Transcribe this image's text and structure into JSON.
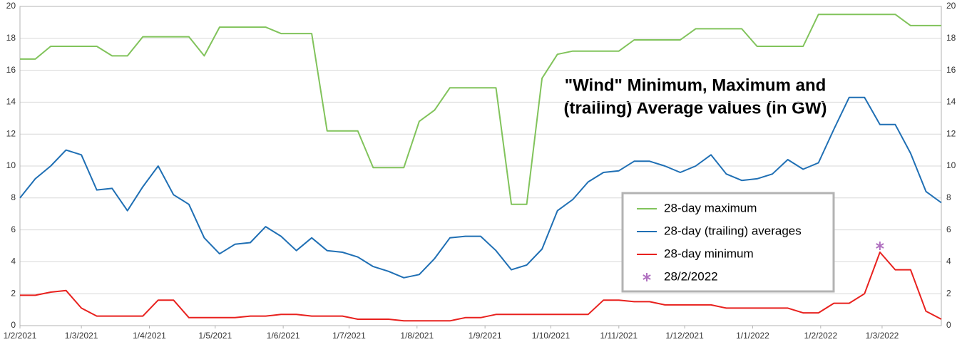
{
  "chart_data": {
    "type": "line",
    "title": [
      "\"Wind\" Minimum, Maximum and",
      "(trailing) Average values (in GW)"
    ],
    "x": [
      "1/2/2021",
      "8/2/2021",
      "15/2/2021",
      "22/2/2021",
      "1/3/2021",
      "8/3/2021",
      "15/3/2021",
      "22/3/2021",
      "29/3/2021",
      "5/4/2021",
      "12/4/2021",
      "19/4/2021",
      "26/4/2021",
      "3/5/2021",
      "10/5/2021",
      "17/5/2021",
      "24/5/2021",
      "31/5/2021",
      "7/6/2021",
      "14/6/2021",
      "21/6/2021",
      "28/6/2021",
      "5/7/2021",
      "12/7/2021",
      "19/7/2021",
      "26/7/2021",
      "2/8/2021",
      "9/8/2021",
      "16/8/2021",
      "23/8/2021",
      "30/8/2021",
      "6/9/2021",
      "13/9/2021",
      "20/9/2021",
      "27/9/2021",
      "4/10/2021",
      "11/10/2021",
      "18/10/2021",
      "25/10/2021",
      "1/11/2021",
      "8/11/2021",
      "15/11/2021",
      "22/11/2021",
      "29/11/2021",
      "6/12/2021",
      "13/12/2021",
      "20/12/2021",
      "27/12/2021",
      "3/1/2022",
      "10/1/2022",
      "17/1/2022",
      "24/1/2022",
      "31/1/2022",
      "7/2/2022",
      "14/2/2022",
      "21/2/2022",
      "28/2/2022",
      "7/3/2022",
      "14/3/2022",
      "21/3/2022",
      "28/3/2022"
    ],
    "xlim": [
      "1/2/2021",
      "28/3/2022"
    ],
    "xticks": [
      "1/2/2021",
      "1/3/2021",
      "1/4/2021",
      "1/5/2021",
      "1/6/2021",
      "1/7/2021",
      "1/8/2021",
      "1/9/2021",
      "1/10/2021",
      "1/11/2021",
      "1/12/2021",
      "1/1/2022",
      "1/2/2022",
      "1/3/2022"
    ],
    "ylim": [
      0,
      20
    ],
    "yticks": [
      0,
      2,
      4,
      6,
      8,
      10,
      12,
      14,
      16,
      18,
      20
    ],
    "y2lim": [
      0,
      20
    ],
    "y2ticks": [
      0,
      2,
      4,
      6,
      8,
      10,
      12,
      14,
      16,
      18,
      20
    ],
    "grid": true,
    "series": [
      {
        "name": "28-day maximum",
        "color": "#81c35b",
        "style": "line",
        "values": [
          16.7,
          16.7,
          17.5,
          17.5,
          17.5,
          17.5,
          16.9,
          16.9,
          18.1,
          18.1,
          18.1,
          18.1,
          16.9,
          18.7,
          18.7,
          18.7,
          18.7,
          18.3,
          18.3,
          18.3,
          12.2,
          12.2,
          12.2,
          9.9,
          9.9,
          9.9,
          12.8,
          13.5,
          14.9,
          14.9,
          14.9,
          14.9,
          7.6,
          7.6,
          15.5,
          17.0,
          17.2,
          17.2,
          17.2,
          17.2,
          17.9,
          17.9,
          17.9,
          17.9,
          18.6,
          18.6,
          18.6,
          18.6,
          17.5,
          17.5,
          17.5,
          17.5,
          19.5,
          19.5,
          19.5,
          19.5,
          19.5,
          19.5,
          18.8,
          18.8,
          18.8
        ]
      },
      {
        "name": "28-day (trailing) averages",
        "color": "#1f6fb4",
        "style": "line",
        "values": [
          8.0,
          9.2,
          10.0,
          11.0,
          10.7,
          8.5,
          8.6,
          7.2,
          8.7,
          10.0,
          8.2,
          7.6,
          5.5,
          4.5,
          5.1,
          5.2,
          6.2,
          5.6,
          4.7,
          5.5,
          4.7,
          4.6,
          4.3,
          3.7,
          3.4,
          3.0,
          3.2,
          4.2,
          5.5,
          5.6,
          5.6,
          4.7,
          3.5,
          3.8,
          4.8,
          7.2,
          7.9,
          9.0,
          9.6,
          9.7,
          10.3,
          10.3,
          10.0,
          9.6,
          10.0,
          10.7,
          9.5,
          9.1,
          9.2,
          9.5,
          10.4,
          9.8,
          10.2,
          12.3,
          14.3,
          14.3,
          12.6,
          12.6,
          10.8,
          8.4,
          7.7
        ]
      },
      {
        "name": "28-day minimum",
        "color": "#e8211e",
        "style": "line",
        "values": [
          1.9,
          1.9,
          2.1,
          2.2,
          1.1,
          0.6,
          0.6,
          0.6,
          0.6,
          1.6,
          1.6,
          0.5,
          0.5,
          0.5,
          0.5,
          0.6,
          0.6,
          0.7,
          0.7,
          0.6,
          0.6,
          0.6,
          0.4,
          0.4,
          0.4,
          0.3,
          0.3,
          0.3,
          0.3,
          0.5,
          0.5,
          0.7,
          0.7,
          0.7,
          0.7,
          0.7,
          0.7,
          0.7,
          1.6,
          1.6,
          1.5,
          1.5,
          1.3,
          1.3,
          1.3,
          1.3,
          1.1,
          1.1,
          1.1,
          1.1,
          1.1,
          0.8,
          0.8,
          1.4,
          1.4,
          2.0,
          4.6,
          3.5,
          3.5,
          0.9,
          0.4
        ]
      },
      {
        "name": "28/2/2022",
        "color": "#b070c0",
        "style": "asterisk",
        "values": [
          null,
          null,
          null,
          null,
          null,
          null,
          null,
          null,
          null,
          null,
          null,
          null,
          null,
          null,
          null,
          null,
          null,
          null,
          null,
          null,
          null,
          null,
          null,
          null,
          null,
          null,
          null,
          null,
          null,
          null,
          null,
          null,
          null,
          null,
          null,
          null,
          null,
          null,
          null,
          null,
          null,
          null,
          null,
          null,
          null,
          null,
          null,
          null,
          null,
          null,
          null,
          null,
          null,
          null,
          null,
          null,
          5.0,
          null,
          null,
          null,
          null
        ]
      }
    ]
  }
}
